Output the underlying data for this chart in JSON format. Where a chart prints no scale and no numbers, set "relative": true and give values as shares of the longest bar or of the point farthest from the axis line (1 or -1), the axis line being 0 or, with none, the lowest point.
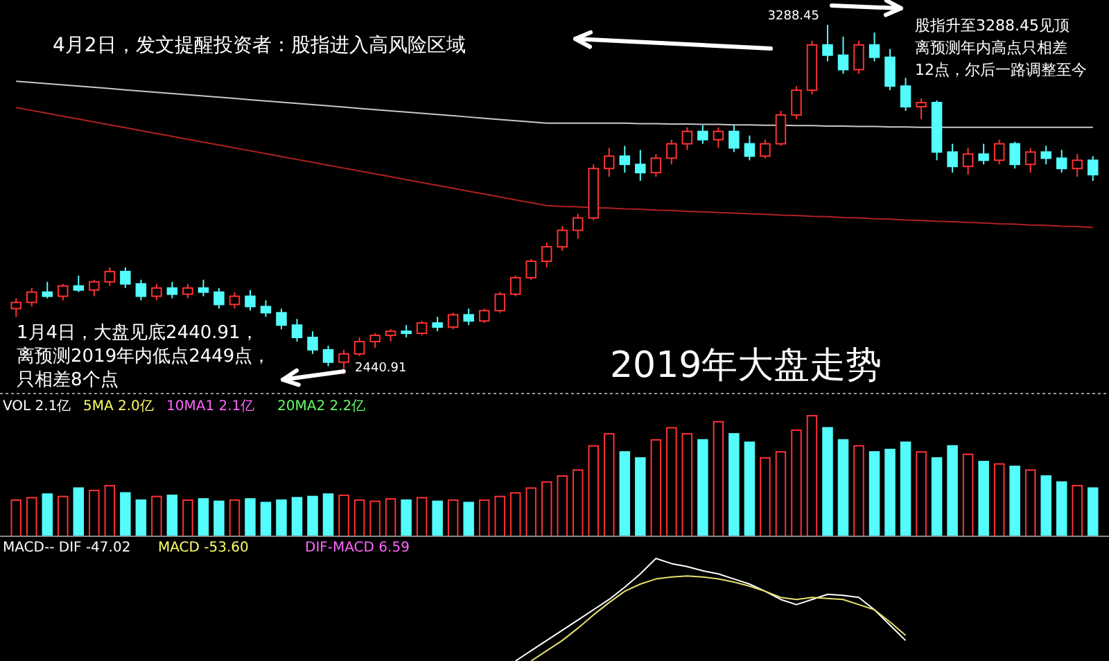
{
  "chart_data": [
    {
      "type": "candlestick",
      "title": "2019年大盘走势",
      "categories": [
        null,
        null,
        null,
        null,
        null,
        null,
        null,
        null,
        null,
        null,
        null,
        null,
        null,
        null,
        null,
        null,
        null,
        null,
        null,
        null,
        null,
        null,
        null,
        null,
        null,
        null,
        null,
        null,
        null,
        null,
        null,
        null,
        null,
        null,
        null,
        null,
        null,
        null,
        null,
        null,
        null,
        null,
        null,
        null,
        null,
        null,
        null,
        null,
        null,
        null,
        null,
        null,
        null,
        null,
        null,
        null,
        null,
        null,
        null,
        null,
        null,
        null,
        null,
        null,
        null,
        null,
        null,
        null,
        null,
        null
      ],
      "ohlc": [
        [
          2600,
          2625,
          2580,
          2615
        ],
        [
          2615,
          2650,
          2605,
          2640
        ],
        [
          2640,
          2665,
          2625,
          2630
        ],
        [
          2630,
          2660,
          2620,
          2655
        ],
        [
          2655,
          2680,
          2640,
          2645
        ],
        [
          2645,
          2670,
          2630,
          2665
        ],
        [
          2665,
          2700,
          2655,
          2690
        ],
        [
          2690,
          2700,
          2650,
          2660
        ],
        [
          2660,
          2670,
          2620,
          2630
        ],
        [
          2630,
          2660,
          2620,
          2650
        ],
        [
          2650,
          2665,
          2625,
          2635
        ],
        [
          2635,
          2660,
          2625,
          2650
        ],
        [
          2650,
          2670,
          2630,
          2640
        ],
        [
          2640,
          2650,
          2600,
          2610
        ],
        [
          2610,
          2640,
          2600,
          2630
        ],
        [
          2630,
          2645,
          2595,
          2605
        ],
        [
          2605,
          2620,
          2580,
          2590
        ],
        [
          2590,
          2600,
          2550,
          2560
        ],
        [
          2560,
          2575,
          2520,
          2530
        ],
        [
          2530,
          2545,
          2490,
          2500
        ],
        [
          2500,
          2510,
          2460,
          2470
        ],
        [
          2470,
          2500,
          2440.91,
          2490
        ],
        [
          2490,
          2530,
          2485,
          2520
        ],
        [
          2520,
          2540,
          2505,
          2535
        ],
        [
          2535,
          2550,
          2520,
          2545
        ],
        [
          2545,
          2560,
          2530,
          2540
        ],
        [
          2540,
          2570,
          2535,
          2565
        ],
        [
          2565,
          2580,
          2545,
          2555
        ],
        [
          2555,
          2590,
          2550,
          2585
        ],
        [
          2585,
          2600,
          2560,
          2570
        ],
        [
          2570,
          2600,
          2565,
          2595
        ],
        [
          2595,
          2640,
          2590,
          2635
        ],
        [
          2635,
          2680,
          2630,
          2675
        ],
        [
          2675,
          2720,
          2670,
          2715
        ],
        [
          2715,
          2760,
          2700,
          2750
        ],
        [
          2750,
          2800,
          2740,
          2790
        ],
        [
          2790,
          2830,
          2770,
          2820
        ],
        [
          2820,
          2950,
          2815,
          2940
        ],
        [
          2940,
          2990,
          2920,
          2970
        ],
        [
          2970,
          2995,
          2930,
          2950
        ],
        [
          2950,
          2985,
          2910,
          2930
        ],
        [
          2930,
          2975,
          2920,
          2965
        ],
        [
          2965,
          3010,
          2950,
          3000
        ],
        [
          3000,
          3040,
          2985,
          3030
        ],
        [
          3030,
          3045,
          3000,
          3010
        ],
        [
          3010,
          3040,
          2990,
          3030
        ],
        [
          3030,
          3045,
          2980,
          2990
        ],
        [
          3000,
          3020,
          2960,
          2970
        ],
        [
          2970,
          3010,
          2965,
          3000
        ],
        [
          3000,
          3080,
          2995,
          3070
        ],
        [
          3070,
          3140,
          3060,
          3130
        ],
        [
          3130,
          3250,
          3120,
          3240
        ],
        [
          3240,
          3288.45,
          3200,
          3215
        ],
        [
          3215,
          3260,
          3170,
          3180
        ],
        [
          3180,
          3250,
          3170,
          3240
        ],
        [
          3240,
          3270,
          3200,
          3210
        ],
        [
          3210,
          3230,
          3130,
          3140
        ],
        [
          3140,
          3160,
          3080,
          3090
        ],
        [
          3090,
          3110,
          3060,
          3100
        ],
        [
          3100,
          3105,
          2960,
          2980
        ],
        [
          2980,
          3000,
          2930,
          2945
        ],
        [
          2945,
          2990,
          2925,
          2975
        ],
        [
          2975,
          3000,
          2950,
          2960
        ],
        [
          2960,
          3010,
          2950,
          3000
        ],
        [
          3000,
          3005,
          2940,
          2950
        ],
        [
          2950,
          2990,
          2930,
          2980
        ],
        [
          2980,
          2995,
          2950,
          2965
        ],
        [
          2965,
          2985,
          2930,
          2940
        ],
        [
          2940,
          2975,
          2920,
          2960
        ],
        [
          2960,
          2970,
          2910,
          2925
        ]
      ],
      "series": [
        {
          "type": "line",
          "color": "#c8c8c8",
          "values": [
            3152,
            3149,
            3146,
            3143,
            3140,
            3137,
            3134,
            3131,
            3128,
            3125,
            3122,
            3119,
            3116,
            3113,
            3110,
            3107,
            3104,
            3101,
            3098,
            3095,
            3092,
            3089,
            3086,
            3083,
            3080,
            3077,
            3074,
            3071,
            3068,
            3065,
            3062,
            3059,
            3056,
            3053,
            3050,
            3050,
            3050,
            3050,
            3050,
            3050,
            3049,
            3049,
            3048,
            3048,
            3047,
            3047,
            3046,
            3046,
            3045,
            3045,
            3044,
            3044,
            3043,
            3043,
            3042,
            3042,
            3041,
            3041,
            3040,
            3040,
            3040,
            3040,
            3040,
            3040,
            3040,
            3040,
            3040,
            3040,
            3040,
            3040
          ]
        },
        {
          "type": "line",
          "color": "#b02020",
          "values": [
            3088,
            3081,
            3074,
            3067,
            3060,
            3053,
            3046,
            3039,
            3032,
            3025,
            3018,
            3011,
            3004,
            2997,
            2990,
            2983,
            2976,
            2969,
            2962,
            2955,
            2948,
            2941,
            2934,
            2927,
            2920,
            2913,
            2906,
            2899,
            2892,
            2885,
            2878,
            2871,
            2864,
            2857,
            2850,
            2848,
            2847,
            2845,
            2844,
            2842,
            2841,
            2839,
            2838,
            2836,
            2835,
            2833,
            2832,
            2830,
            2829,
            2827,
            2826,
            2824,
            2823,
            2821,
            2820,
            2818,
            2817,
            2815,
            2814,
            2812,
            2811,
            2809,
            2808,
            2806,
            2805,
            2803,
            2802,
            2800,
            2799,
            2797
          ]
        }
      ],
      "annotations": [
        "4月2日，发文提醒投资者：股指进入高风险区域",
        "股指升至3288.45见顶",
        "离预测年内高点只相差",
        "12点，尔后一路调整至今",
        "1月4日，大盘见底2440.91，",
        "离预测2019年内低点2449点，",
        "只相差8个点",
        "2440.91",
        "3288.45"
      ]
    },
    {
      "type": "bar",
      "relative": true,
      "categories": [
        null,
        null,
        null,
        null,
        null,
        null,
        null,
        null,
        null,
        null,
        null,
        null,
        null,
        null,
        null,
        null,
        null,
        null,
        null,
        null,
        null,
        null,
        null,
        null,
        null,
        null,
        null,
        null,
        null,
        null,
        null,
        null,
        null,
        null,
        null,
        null,
        null,
        null,
        null,
        null,
        null,
        null,
        null,
        null,
        null,
        null,
        null,
        null,
        null,
        null,
        null,
        null,
        null,
        null,
        null,
        null,
        null,
        null,
        null,
        null,
        null,
        null,
        null,
        null,
        null,
        null,
        null,
        null,
        null,
        null
      ],
      "values": [
        0.3,
        0.32,
        0.35,
        0.33,
        0.4,
        0.38,
        0.42,
        0.36,
        0.3,
        0.33,
        0.34,
        0.3,
        0.31,
        0.29,
        0.3,
        0.31,
        0.28,
        0.3,
        0.32,
        0.33,
        0.35,
        0.34,
        0.3,
        0.29,
        0.31,
        0.3,
        0.32,
        0.29,
        0.3,
        0.28,
        0.3,
        0.33,
        0.36,
        0.4,
        0.45,
        0.5,
        0.55,
        0.75,
        0.85,
        0.7,
        0.65,
        0.8,
        0.9,
        0.85,
        0.8,
        0.95,
        0.85,
        0.78,
        0.65,
        0.7,
        0.88,
        1.0,
        0.9,
        0.8,
        0.75,
        0.7,
        0.72,
        0.78,
        0.7,
        0.65,
        0.75,
        0.68,
        0.62,
        0.6,
        0.58,
        0.55,
        0.5,
        0.45,
        0.42,
        0.4
      ],
      "colors": [
        "#ff3232",
        "#ff3232",
        "#54fcfc",
        "#ff3232",
        "#54fcfc",
        "#ff3232",
        "#ff3232",
        "#54fcfc",
        "#54fcfc",
        "#ff3232",
        "#54fcfc",
        "#ff3232",
        "#54fcfc",
        "#54fcfc",
        "#ff3232",
        "#54fcfc",
        "#54fcfc",
        "#54fcfc",
        "#54fcfc",
        "#54fcfc",
        "#54fcfc",
        "#ff3232",
        "#ff3232",
        "#ff3232",
        "#ff3232",
        "#54fcfc",
        "#ff3232",
        "#54fcfc",
        "#ff3232",
        "#54fcfc",
        "#ff3232",
        "#ff3232",
        "#ff3232",
        "#ff3232",
        "#ff3232",
        "#ff3232",
        "#ff3232",
        "#ff3232",
        "#ff3232",
        "#54fcfc",
        "#54fcfc",
        "#ff3232",
        "#ff3232",
        "#ff3232",
        "#54fcfc",
        "#ff3232",
        "#54fcfc",
        "#54fcfc",
        "#ff3232",
        "#ff3232",
        "#ff3232",
        "#ff3232",
        "#54fcfc",
        "#54fcfc",
        "#ff3232",
        "#54fcfc",
        "#54fcfc",
        "#54fcfc",
        "#ff3232",
        "#54fcfc",
        "#54fcfc",
        "#ff3232",
        "#54fcfc",
        "#ff3232",
        "#54fcfc",
        "#ff3232",
        "#54fcfc",
        "#54fcfc",
        "#ff3232",
        "#54fcfc"
      ],
      "annotations": [
        "VOL 2.1亿",
        "5MA 2.0亿",
        "10MA1 2.1亿",
        "20MA2 2.2亿"
      ]
    },
    {
      "type": "line",
      "relative": true,
      "categories": [
        null,
        null,
        null,
        null,
        null,
        null,
        null,
        null,
        null,
        null,
        null,
        null,
        null,
        null,
        null,
        null,
        null,
        null,
        null,
        null,
        null,
        null,
        null,
        null,
        null,
        null,
        null,
        null,
        null,
        null,
        null,
        null,
        null,
        null,
        null,
        null,
        null,
        null,
        null,
        null,
        null,
        null,
        null,
        null,
        null,
        null,
        null,
        null,
        null,
        null,
        null,
        null,
        null,
        null,
        null,
        null,
        null,
        null,
        null,
        null,
        null,
        null,
        null,
        null,
        null,
        null,
        null,
        null,
        null,
        null
      ],
      "series": [
        {
          "color": "#ffffff",
          "values": [
            null,
            null,
            null,
            null,
            null,
            null,
            null,
            null,
            null,
            null,
            null,
            null,
            null,
            null,
            null,
            null,
            null,
            null,
            null,
            null,
            null,
            null,
            null,
            null,
            null,
            null,
            null,
            null,
            null,
            null,
            null,
            null,
            0,
            0.1,
            0.2,
            0.3,
            0.4,
            0.5,
            0.6,
            0.72,
            0.85,
            1,
            0.95,
            0.92,
            0.88,
            0.85,
            0.8,
            0.75,
            0.68,
            0.6,
            0.55,
            0.6,
            0.65,
            0.64,
            0.62,
            0.5,
            0.35,
            0.2,
            null,
            null,
            null,
            null,
            null,
            null,
            null,
            null,
            null,
            null,
            null,
            null
          ]
        },
        {
          "color": "#e8e070",
          "values": [
            null,
            null,
            null,
            null,
            null,
            null,
            null,
            null,
            null,
            null,
            null,
            null,
            null,
            null,
            null,
            null,
            null,
            null,
            null,
            null,
            null,
            null,
            null,
            null,
            null,
            null,
            null,
            null,
            null,
            null,
            null,
            null,
            null,
            0,
            0.1,
            0.2,
            0.32,
            0.45,
            0.57,
            0.68,
            0.75,
            0.8,
            0.82,
            0.83,
            0.82,
            0.8,
            0.77,
            0.73,
            0.68,
            0.62,
            0.6,
            0.62,
            0.61,
            0.6,
            0.55,
            0.5,
            0.38,
            0.25,
            null,
            null,
            null,
            null,
            null,
            null,
            null,
            null,
            null,
            null,
            null,
            null
          ]
        }
      ],
      "annotations": [
        "MACD-- DIF -47.02",
        "MACD -53.60",
        "DIF-MACD 6.59"
      ]
    }
  ]
}
